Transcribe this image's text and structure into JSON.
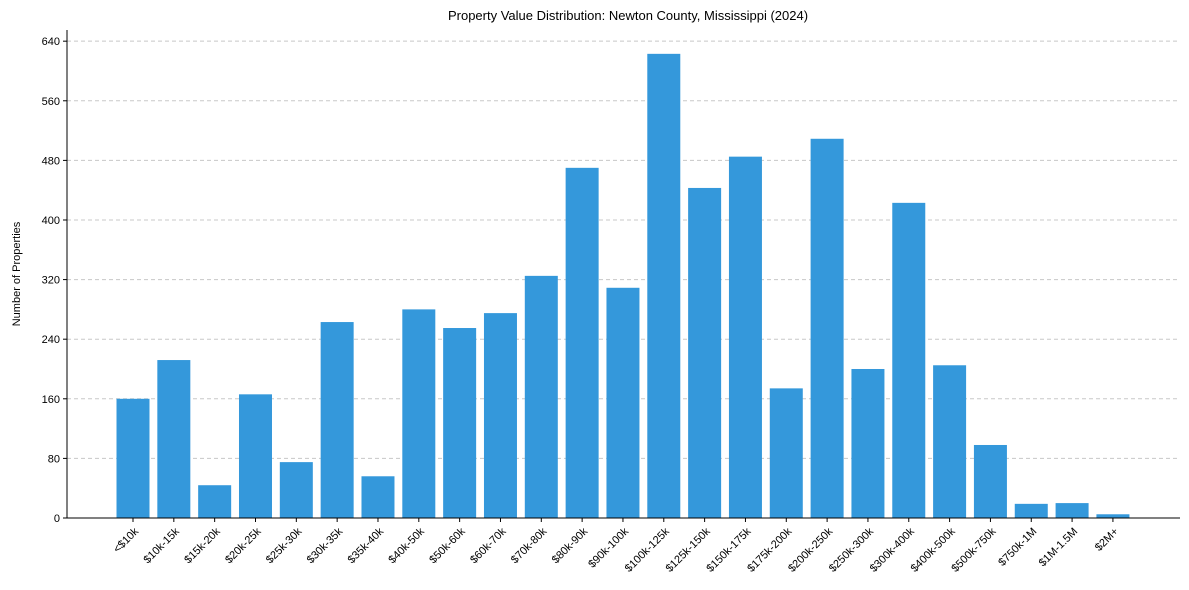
{
  "chart_data": {
    "type": "bar",
    "title": "Property Value Distribution: Newton County, Mississippi (2024)",
    "xlabel": "",
    "ylabel": "Number of Properties",
    "ylim": [
      0,
      655
    ],
    "yticks": [
      0,
      80,
      160,
      240,
      320,
      400,
      480,
      560,
      640
    ],
    "grid": "y-dashed",
    "bar_color": "#3498db",
    "categories": [
      "<$10k",
      "$10k-15k",
      "$15k-20k",
      "$20k-25k",
      "$25k-30k",
      "$30k-35k",
      "$35k-40k",
      "$40k-50k",
      "$50k-60k",
      "$60k-70k",
      "$70k-80k",
      "$80k-90k",
      "$90k-100k",
      "$100k-125k",
      "$125k-150k",
      "$150k-175k",
      "$175k-200k",
      "$200k-250k",
      "$250k-300k",
      "$300k-400k",
      "$400k-500k",
      "$500k-750k",
      "$750k-1M",
      "$1M-1.5M",
      "$2M+"
    ],
    "values": [
      160,
      212,
      44,
      166,
      75,
      263,
      56,
      280,
      255,
      275,
      325,
      470,
      309,
      623,
      443,
      485,
      174,
      509,
      200,
      423,
      205,
      98,
      19,
      20,
      5
    ]
  }
}
